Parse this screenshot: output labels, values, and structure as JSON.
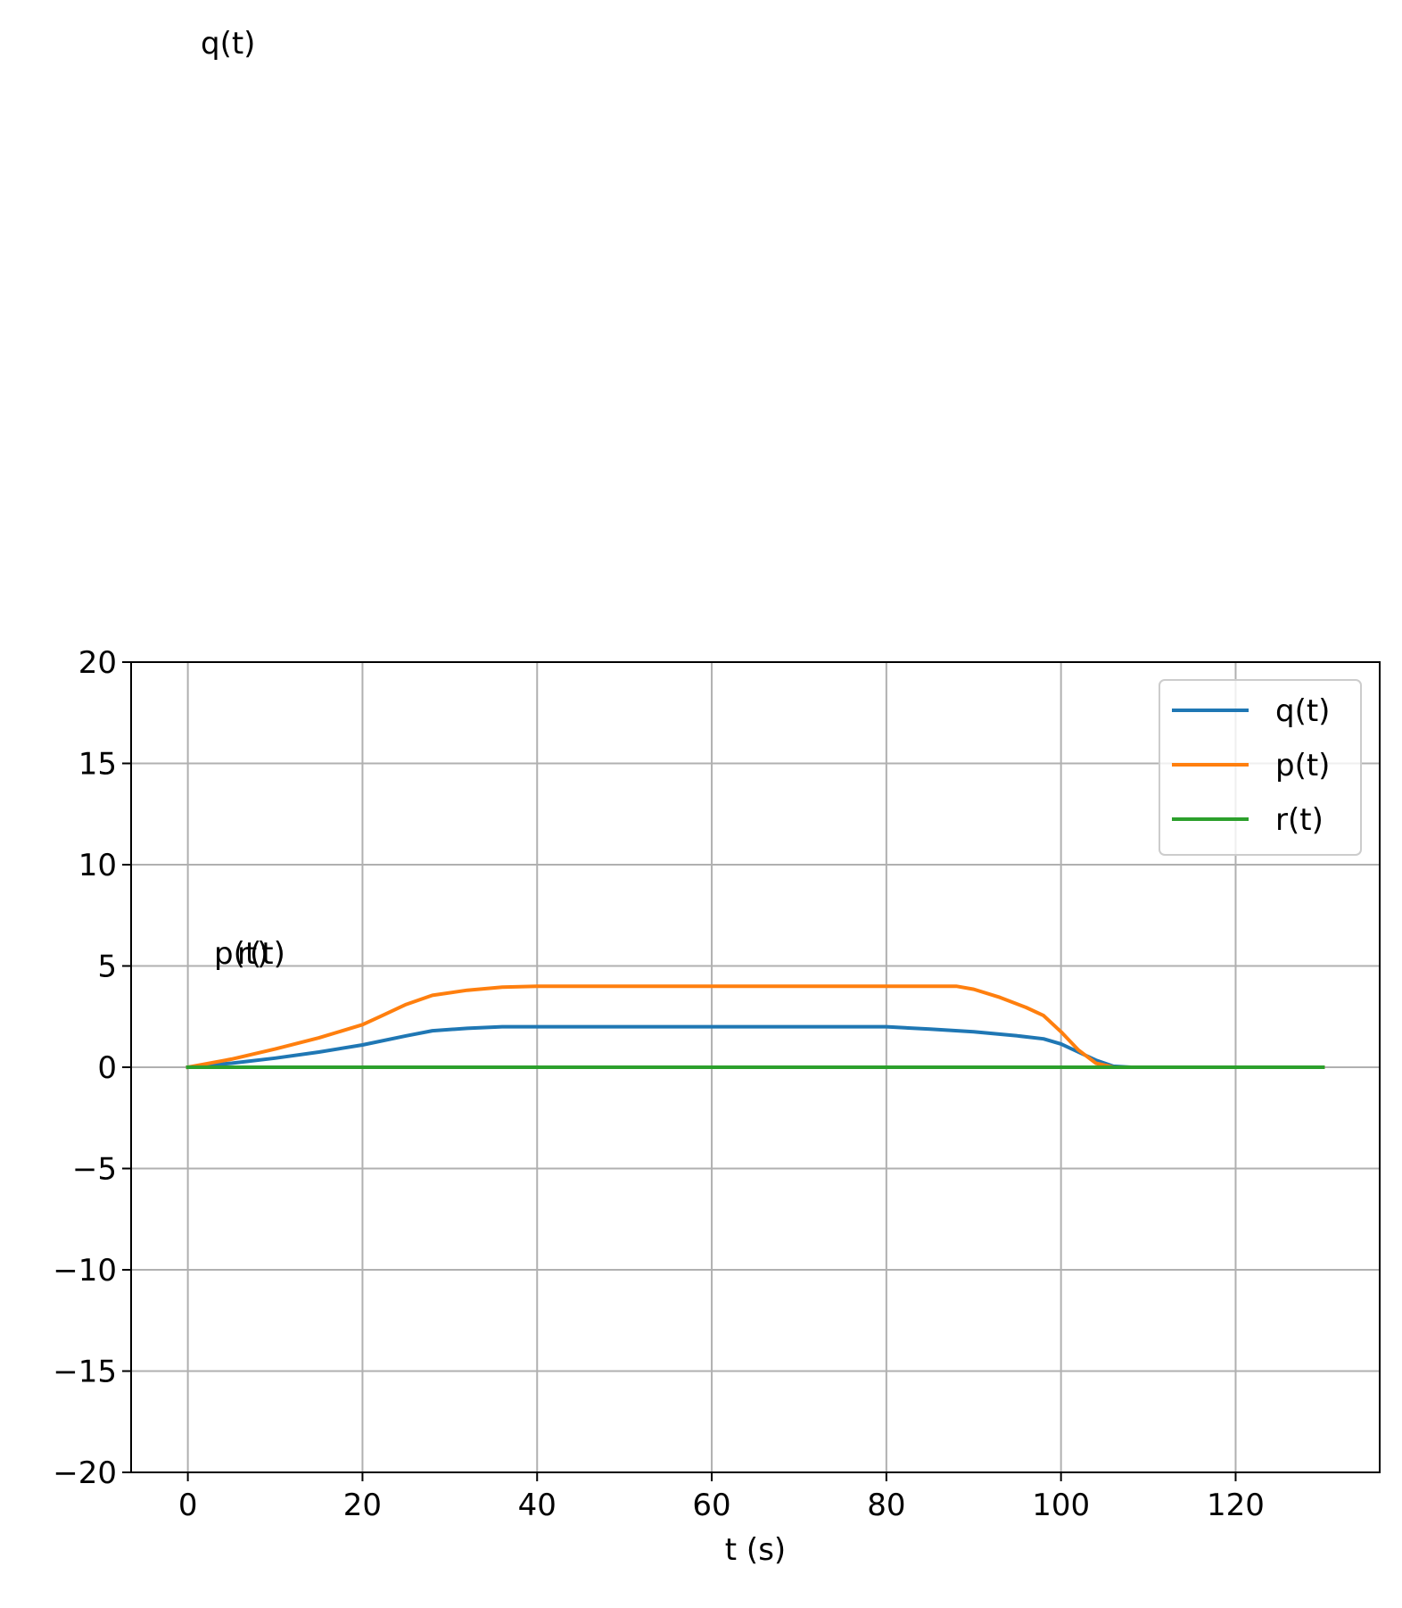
{
  "chart_data": {
    "type": "line",
    "xlabel": "t (s)",
    "ylabel": "",
    "xlim": [
      -6.5,
      136.5
    ],
    "ylim": [
      -20,
      20
    ],
    "xticks": [
      0,
      20,
      40,
      60,
      80,
      100,
      120
    ],
    "yticks": [
      -20,
      -15,
      -10,
      -5,
      0,
      5,
      10,
      15,
      20
    ],
    "xtick_labels": [
      "0",
      "20",
      "40",
      "60",
      "80",
      "100",
      "120"
    ],
    "ytick_labels": [
      "−20",
      "−15",
      "−10",
      "−5",
      "0",
      "5",
      "10",
      "15",
      "20"
    ],
    "grid": true,
    "legend": "top-right",
    "series": [
      {
        "name": "q(t)",
        "color": "#1f77b4",
        "x": [
          0,
          5,
          10,
          15,
          20,
          25,
          28,
          32,
          36,
          40,
          50,
          60,
          70,
          80,
          85,
          90,
          95,
          98,
          100,
          102,
          104,
          106,
          108,
          110,
          120,
          130
        ],
        "y": [
          0,
          0.2,
          0.45,
          0.75,
          1.1,
          1.55,
          1.8,
          1.92,
          2.0,
          2.0,
          2.0,
          2.0,
          2.0,
          2.0,
          1.88,
          1.75,
          1.55,
          1.4,
          1.15,
          0.75,
          0.35,
          0.05,
          0,
          0,
          0,
          0
        ]
      },
      {
        "name": "p(t)",
        "color": "#ff7f0e",
        "x": [
          0,
          5,
          10,
          15,
          20,
          22,
          25,
          28,
          32,
          36,
          40,
          50,
          60,
          70,
          80,
          88,
          90,
          93,
          96,
          98,
          100,
          102,
          104,
          106,
          108,
          110,
          120,
          130
        ],
        "y": [
          0,
          0.4,
          0.9,
          1.45,
          2.1,
          2.5,
          3.1,
          3.55,
          3.8,
          3.95,
          4.0,
          4.0,
          4.0,
          4.0,
          4.0,
          4.0,
          3.85,
          3.45,
          2.95,
          2.55,
          1.75,
          0.85,
          0.2,
          0,
          0,
          0,
          0,
          0
        ]
      },
      {
        "name": "r(t)",
        "color": "#2ca02c",
        "x": [
          0,
          130
        ],
        "y": [
          0,
          0
        ]
      }
    ],
    "annotations": [
      {
        "text": "q(t)"
      },
      {
        "text": "p(t)"
      },
      {
        "text": "r(t)"
      }
    ]
  }
}
